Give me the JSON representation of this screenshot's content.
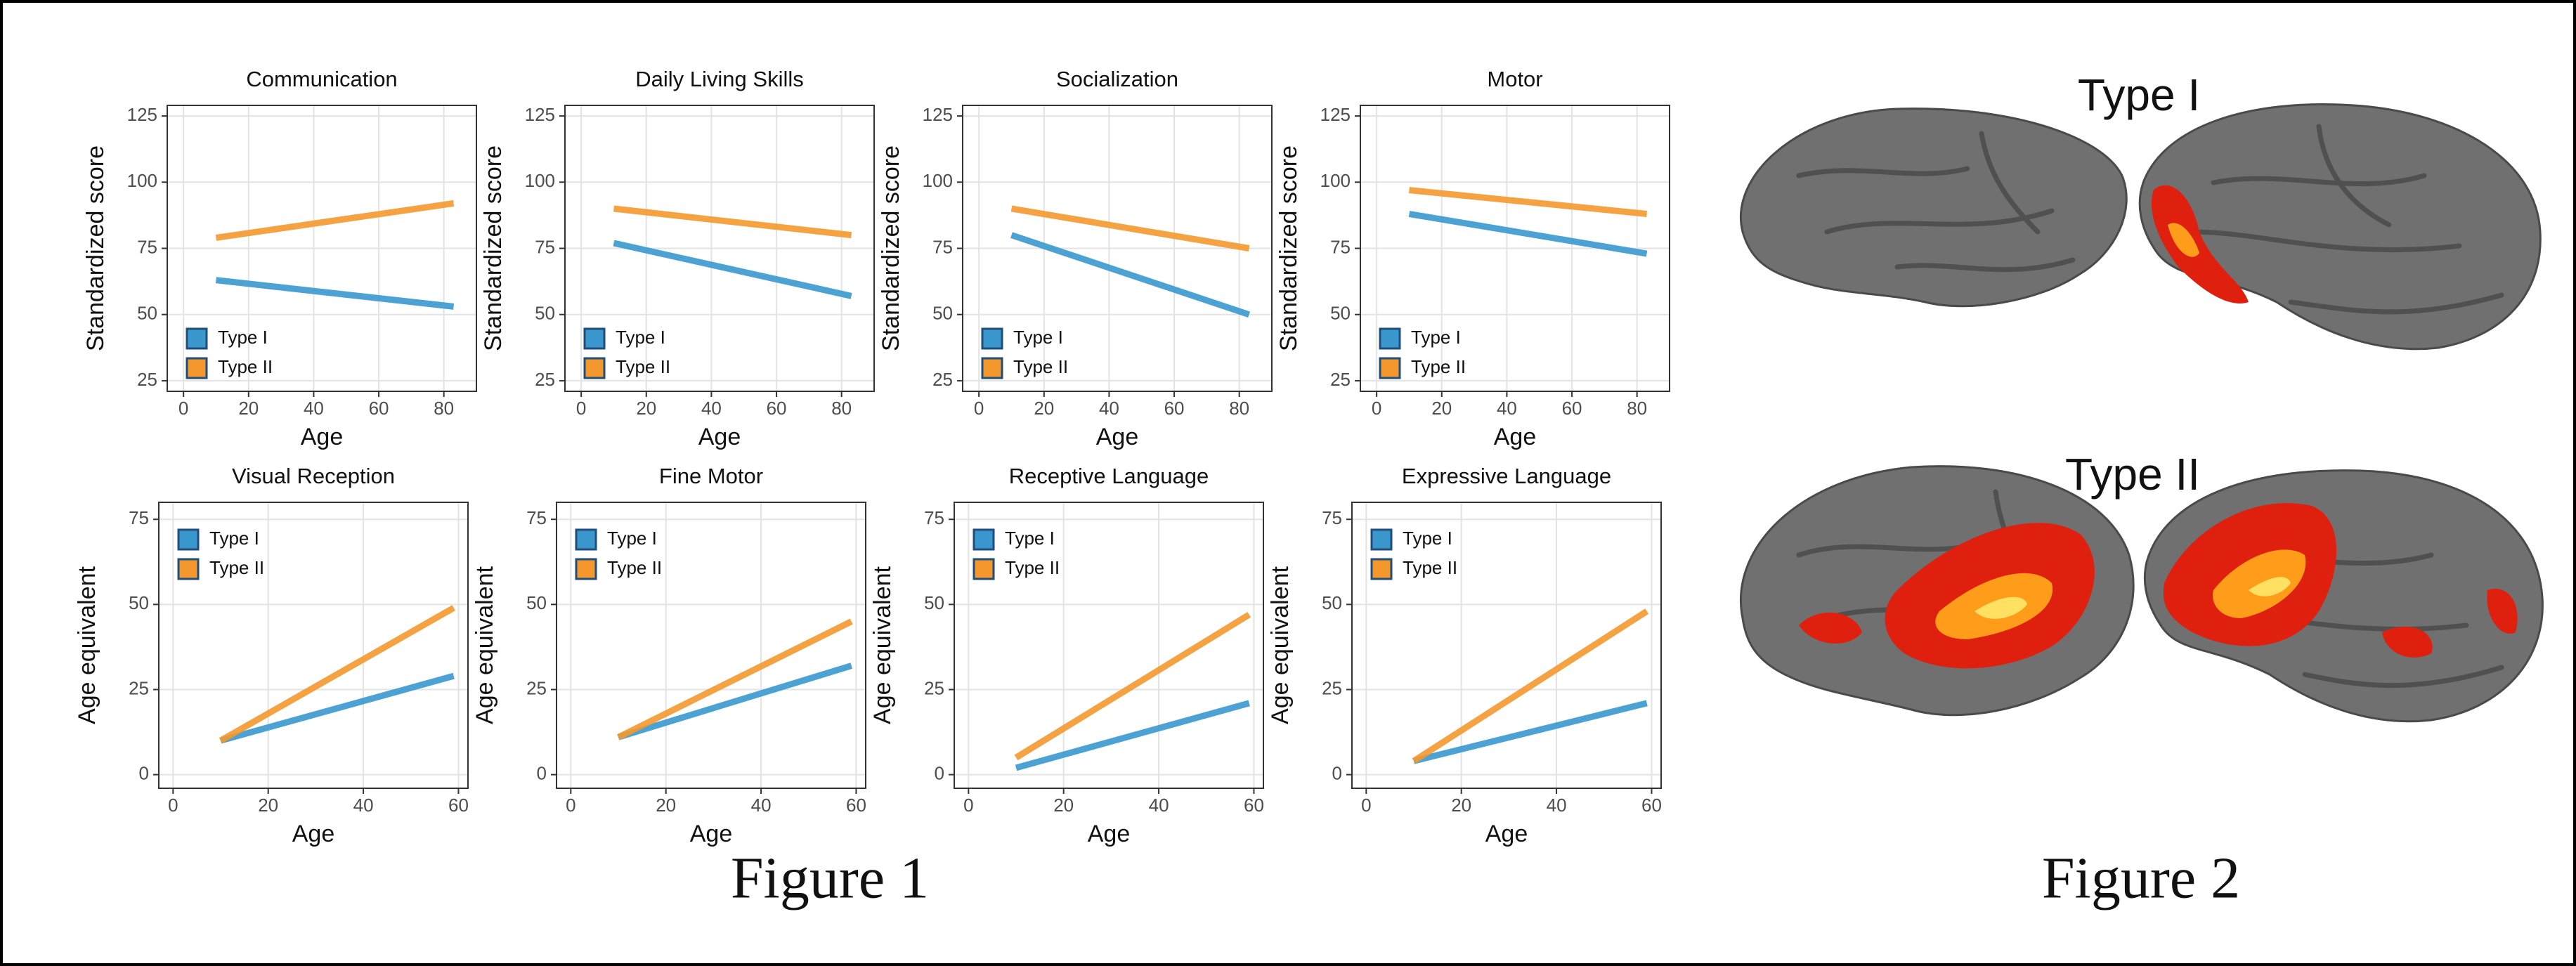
{
  "chart_data": [
    {
      "type": "line",
      "title": "Communication",
      "xlabel": "Age",
      "ylabel": "Standardized score",
      "xlim": [
        -5,
        90
      ],
      "ylim": [
        21,
        129
      ],
      "xticks": [
        0,
        20,
        40,
        60,
        80
      ],
      "yticks": [
        25,
        50,
        75,
        100,
        125
      ],
      "grid": true,
      "legend": "bottom-left",
      "series": [
        {
          "name": "Type I",
          "color": "#3a98cf",
          "x": [
            10,
            83
          ],
          "values": [
            63,
            53
          ]
        },
        {
          "name": "Type II",
          "color": "#f4982d",
          "x": [
            10,
            83
          ],
          "values": [
            79,
            92
          ]
        }
      ]
    },
    {
      "type": "line",
      "title": "Daily Living Skills",
      "xlabel": "Age",
      "ylabel": "Standardized score",
      "xlim": [
        -5,
        90
      ],
      "ylim": [
        21,
        129
      ],
      "xticks": [
        0,
        20,
        40,
        60,
        80
      ],
      "yticks": [
        25,
        50,
        75,
        100,
        125
      ],
      "grid": true,
      "legend": "bottom-left",
      "series": [
        {
          "name": "Type I",
          "color": "#3a98cf",
          "x": [
            10,
            83
          ],
          "values": [
            77,
            57
          ]
        },
        {
          "name": "Type II",
          "color": "#f4982d",
          "x": [
            10,
            83
          ],
          "values": [
            90,
            80
          ]
        }
      ]
    },
    {
      "type": "line",
      "title": "Socialization",
      "xlabel": "Age",
      "ylabel": "Standardized score",
      "xlim": [
        -5,
        90
      ],
      "ylim": [
        21,
        129
      ],
      "xticks": [
        0,
        20,
        40,
        60,
        80
      ],
      "yticks": [
        25,
        50,
        75,
        100,
        125
      ],
      "grid": true,
      "legend": "bottom-left",
      "series": [
        {
          "name": "Type I",
          "color": "#3a98cf",
          "x": [
            10,
            83
          ],
          "values": [
            80,
            50
          ]
        },
        {
          "name": "Type II",
          "color": "#f4982d",
          "x": [
            10,
            83
          ],
          "values": [
            90,
            75
          ]
        }
      ]
    },
    {
      "type": "line",
      "title": "Motor",
      "xlabel": "Age",
      "ylabel": "Standardized score",
      "xlim": [
        -5,
        90
      ],
      "ylim": [
        21,
        129
      ],
      "xticks": [
        0,
        20,
        40,
        60,
        80
      ],
      "yticks": [
        25,
        50,
        75,
        100,
        125
      ],
      "grid": true,
      "legend": "bottom-left",
      "series": [
        {
          "name": "Type I",
          "color": "#3a98cf",
          "x": [
            10,
            83
          ],
          "values": [
            88,
            73
          ]
        },
        {
          "name": "Type II",
          "color": "#f4982d",
          "x": [
            10,
            83
          ],
          "values": [
            97,
            88
          ]
        }
      ]
    },
    {
      "type": "line",
      "title": "Visual Reception",
      "xlabel": "Age",
      "ylabel": "Age equivalent",
      "xlim": [
        -3,
        62
      ],
      "ylim": [
        -4,
        80
      ],
      "xticks": [
        0,
        20,
        40,
        60
      ],
      "yticks": [
        0,
        25,
        50,
        75
      ],
      "grid": true,
      "legend": "top-left",
      "series": [
        {
          "name": "Type I",
          "color": "#3a98cf",
          "x": [
            10,
            59
          ],
          "values": [
            10,
            29
          ]
        },
        {
          "name": "Type II",
          "color": "#f4982d",
          "x": [
            10,
            59
          ],
          "values": [
            10,
            49
          ]
        }
      ]
    },
    {
      "type": "line",
      "title": "Fine Motor",
      "xlabel": "Age",
      "ylabel": "Age equivalent",
      "xlim": [
        -3,
        62
      ],
      "ylim": [
        -4,
        80
      ],
      "xticks": [
        0,
        20,
        40,
        60
      ],
      "yticks": [
        0,
        25,
        50,
        75
      ],
      "grid": true,
      "legend": "top-left",
      "series": [
        {
          "name": "Type I",
          "color": "#3a98cf",
          "x": [
            10,
            59
          ],
          "values": [
            11,
            32
          ]
        },
        {
          "name": "Type II",
          "color": "#f4982d",
          "x": [
            10,
            59
          ],
          "values": [
            11,
            45
          ]
        }
      ]
    },
    {
      "type": "line",
      "title": "Receptive Language",
      "xlabel": "Age",
      "ylabel": "Age equivalent",
      "xlim": [
        -3,
        62
      ],
      "ylim": [
        -4,
        80
      ],
      "xticks": [
        0,
        20,
        40,
        60
      ],
      "yticks": [
        0,
        25,
        50,
        75
      ],
      "grid": true,
      "legend": "top-left",
      "series": [
        {
          "name": "Type I",
          "color": "#3a98cf",
          "x": [
            10,
            59
          ],
          "values": [
            2,
            21
          ]
        },
        {
          "name": "Type II",
          "color": "#f4982d",
          "x": [
            10,
            59
          ],
          "values": [
            5,
            47
          ]
        }
      ]
    },
    {
      "type": "line",
      "title": "Expressive Language",
      "xlabel": "Age",
      "ylabel": "Age equivalent",
      "xlim": [
        -3,
        62
      ],
      "ylim": [
        -4,
        80
      ],
      "xticks": [
        0,
        20,
        40,
        60
      ],
      "yticks": [
        0,
        25,
        50,
        75
      ],
      "grid": true,
      "legend": "top-left",
      "series": [
        {
          "name": "Type I",
          "color": "#3a98cf",
          "x": [
            10,
            59
          ],
          "values": [
            4,
            21
          ]
        },
        {
          "name": "Type II",
          "color": "#f4982d",
          "x": [
            10,
            59
          ],
          "values": [
            4,
            48
          ]
        }
      ]
    }
  ],
  "figures": [
    {
      "caption": "Figure 1"
    },
    {
      "caption": "Figure 2",
      "panels": [
        "Type I",
        "Type II"
      ]
    }
  ]
}
